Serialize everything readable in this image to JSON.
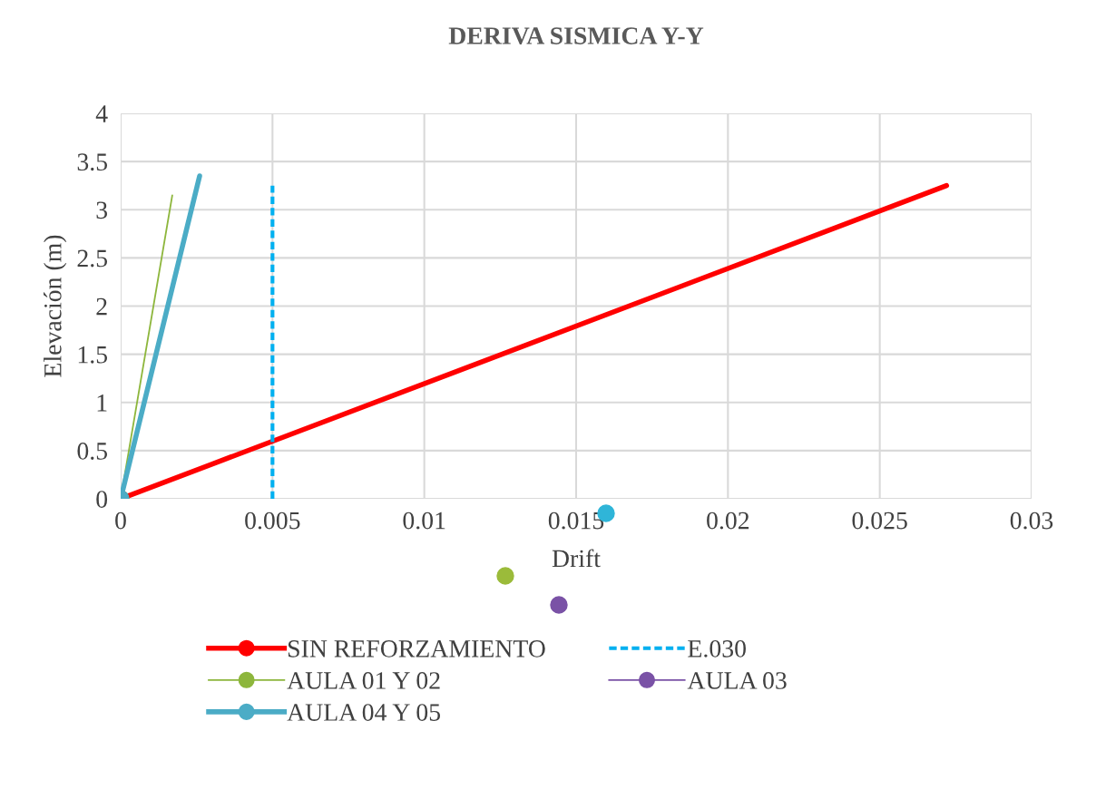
{
  "chart_data": {
    "type": "line",
    "title": "DERIVA SISMICA Y-Y",
    "xlabel": "Drift",
    "ylabel": "Elevación (m)",
    "xlim": [
      0,
      0.03
    ],
    "xticks": [
      0,
      0.005,
      0.01,
      0.015,
      0.02,
      0.025,
      0.03
    ],
    "ylim": [
      0,
      4
    ],
    "yticks": [
      0,
      0.5,
      1,
      1.5,
      2,
      2.5,
      3,
      3.5,
      4
    ],
    "grid": true,
    "legend": "bottom",
    "marker": "circle",
    "series": [
      {
        "name": "SIN REFORZAMIENTO",
        "color": "#ff0000",
        "x": [
          0,
          0.0272
        ],
        "values": [
          0,
          3.25
        ]
      },
      {
        "name": "E.030",
        "color": "#00b0f0",
        "x": [
          0.005,
          0.005
        ],
        "values": [
          0,
          3.25
        ],
        "line_style": "dashed",
        "marker": "none"
      },
      {
        "name": "AULA 01 Y 02",
        "color": "#8db63c",
        "x": [
          0,
          0.0017
        ],
        "values": [
          0,
          3.15
        ]
      },
      {
        "name": "AULA 03",
        "color": "#7a52a6",
        "values": [
          null
        ]
      },
      {
        "name": "AULA 04 Y 05",
        "color": "#4bacc6",
        "x": [
          0,
          0.0026
        ],
        "values": [
          0,
          3.35
        ]
      }
    ]
  }
}
